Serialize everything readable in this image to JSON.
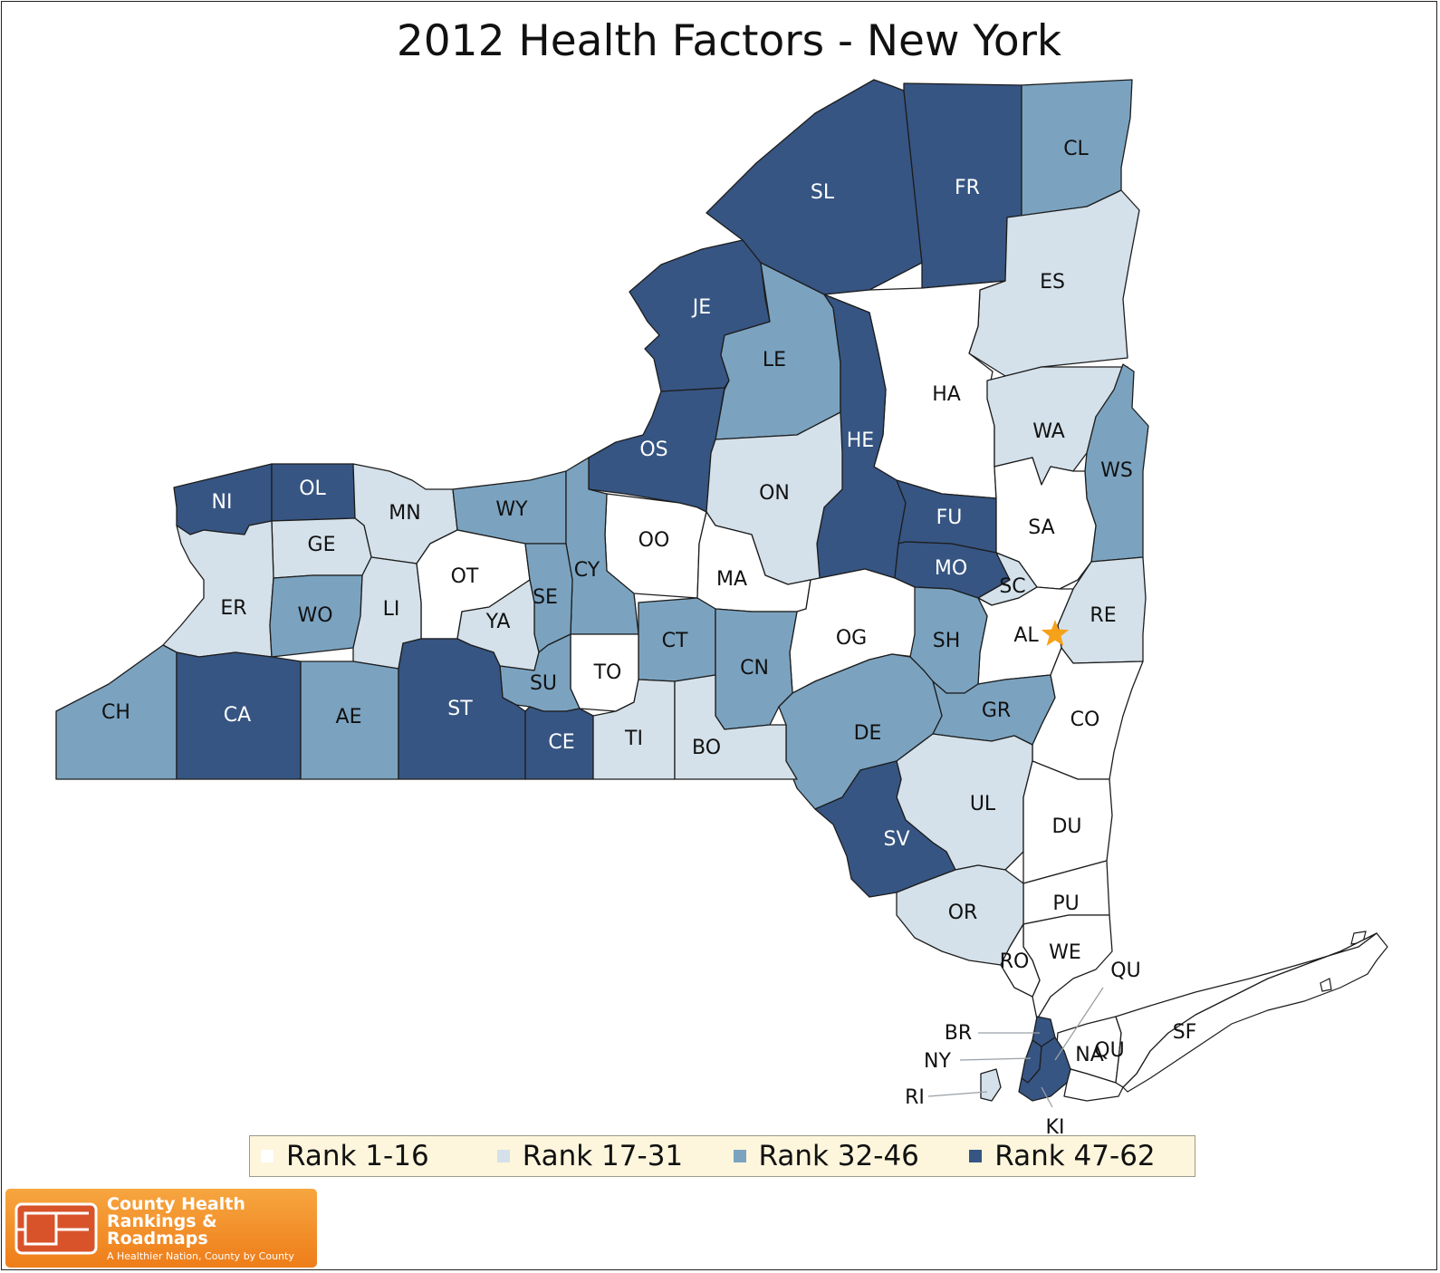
{
  "title": "2012 Health Factors - New York",
  "colors": {
    "rank_1_16": "#ffffff",
    "rank_17_31": "#d4e1ea",
    "rank_32_46": "#7ba3c0",
    "rank_47_62": "#365583",
    "capital_star": "#f6a11a"
  },
  "legend": [
    {
      "label": "Rank 1-16",
      "color": "#ffffff"
    },
    {
      "label": "Rank 17-31",
      "color": "#d4e1ea"
    },
    {
      "label": "Rank 32-46",
      "color": "#7ba3c0"
    },
    {
      "label": "Rank 47-62",
      "color": "#365583"
    }
  ],
  "counties": [
    {
      "code": "SL",
      "rank_group": "47-62"
    },
    {
      "code": "FR",
      "rank_group": "47-62"
    },
    {
      "code": "CL",
      "rank_group": "32-46"
    },
    {
      "code": "ES",
      "rank_group": "17-31"
    },
    {
      "code": "JE",
      "rank_group": "47-62"
    },
    {
      "code": "LE",
      "rank_group": "32-46"
    },
    {
      "code": "HA",
      "rank_group": "1-16"
    },
    {
      "code": "HE",
      "rank_group": "47-62"
    },
    {
      "code": "WA",
      "rank_group": "17-31"
    },
    {
      "code": "OS",
      "rank_group": "47-62"
    },
    {
      "code": "WS",
      "rank_group": "32-46"
    },
    {
      "code": "NI",
      "rank_group": "47-62"
    },
    {
      "code": "OL",
      "rank_group": "47-62"
    },
    {
      "code": "MN",
      "rank_group": "17-31"
    },
    {
      "code": "WY",
      "rank_group": "32-46"
    },
    {
      "code": "ON",
      "rank_group": "17-31"
    },
    {
      "code": "FU",
      "rank_group": "47-62"
    },
    {
      "code": "SA",
      "rank_group": "1-16"
    },
    {
      "code": "GE",
      "rank_group": "17-31"
    },
    {
      "code": "OO",
      "rank_group": "1-16"
    },
    {
      "code": "CY",
      "rank_group": "32-46"
    },
    {
      "code": "OT",
      "rank_group": "1-16"
    },
    {
      "code": "MA",
      "rank_group": "1-16"
    },
    {
      "code": "MO",
      "rank_group": "47-62"
    },
    {
      "code": "SC",
      "rank_group": "17-31"
    },
    {
      "code": "ER",
      "rank_group": "17-31"
    },
    {
      "code": "SE",
      "rank_group": "32-46"
    },
    {
      "code": "RE",
      "rank_group": "17-31"
    },
    {
      "code": "WO",
      "rank_group": "32-46"
    },
    {
      "code": "LI",
      "rank_group": "17-31"
    },
    {
      "code": "YA",
      "rank_group": "17-31"
    },
    {
      "code": "AL",
      "rank_group": "1-16"
    },
    {
      "code": "OG",
      "rank_group": "1-16"
    },
    {
      "code": "SH",
      "rank_group": "32-46"
    },
    {
      "code": "CT",
      "rank_group": "32-46"
    },
    {
      "code": "TO",
      "rank_group": "1-16"
    },
    {
      "code": "CN",
      "rank_group": "32-46"
    },
    {
      "code": "SU",
      "rank_group": "32-46"
    },
    {
      "code": "CH",
      "rank_group": "32-46"
    },
    {
      "code": "CA",
      "rank_group": "47-62"
    },
    {
      "code": "AE",
      "rank_group": "32-46"
    },
    {
      "code": "ST",
      "rank_group": "47-62"
    },
    {
      "code": "GR",
      "rank_group": "32-46"
    },
    {
      "code": "CO",
      "rank_group": "1-16"
    },
    {
      "code": "DE",
      "rank_group": "32-46"
    },
    {
      "code": "CE",
      "rank_group": "47-62"
    },
    {
      "code": "TI",
      "rank_group": "17-31"
    },
    {
      "code": "BO",
      "rank_group": "17-31"
    },
    {
      "code": "UL",
      "rank_group": "17-31"
    },
    {
      "code": "DU",
      "rank_group": "1-16"
    },
    {
      "code": "SV",
      "rank_group": "47-62"
    },
    {
      "code": "PU",
      "rank_group": "1-16"
    },
    {
      "code": "OR",
      "rank_group": "17-31"
    },
    {
      "code": "WE",
      "rank_group": "1-16"
    },
    {
      "code": "RO",
      "rank_group": "1-16"
    },
    {
      "code": "QU",
      "rank_group": "1-16"
    },
    {
      "code": "BR",
      "rank_group": "47-62"
    },
    {
      "code": "SF",
      "rank_group": "1-16"
    },
    {
      "code": "NA",
      "rank_group": "1-16"
    },
    {
      "code": "NY",
      "rank_group": "47-62"
    },
    {
      "code": "RI",
      "rank_group": "17-31"
    },
    {
      "code": "KI",
      "rank_group": "47-62"
    }
  ],
  "logo": {
    "line1": "County Health",
    "line2": "Rankings & Roadmaps",
    "tagline": "A Healthier Nation, County by County"
  }
}
